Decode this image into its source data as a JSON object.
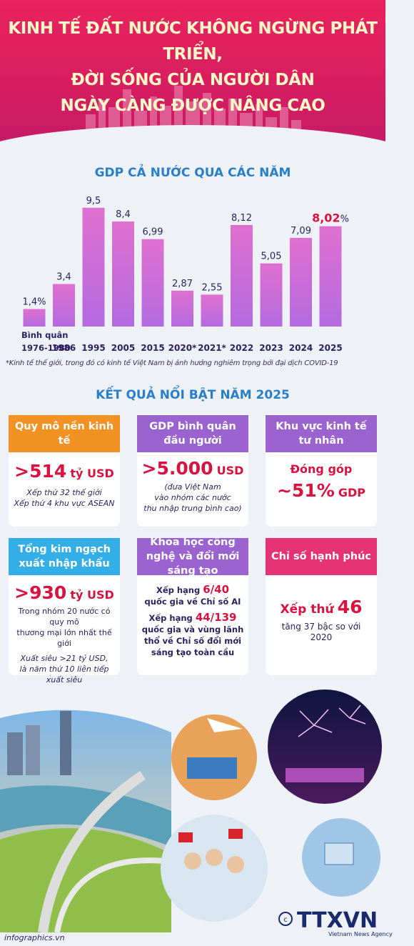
{
  "header": {
    "line1": "KINH TẾ ĐẤT NƯỚC KHÔNG NGỪNG PHÁT TRIỂN,",
    "line2": "ĐỜI SỐNG CỦA NGƯỜI DÂN",
    "line3": "NGÀY CÀNG ĐƯỢC NÂNG CAO"
  },
  "chart_data": {
    "type": "bar",
    "title": "GDP CẢ NƯỚC QUA CÁC NĂM",
    "categories": [
      "Bình quân 1976-1980",
      "1986",
      "1995",
      "2005",
      "2015",
      "2020*",
      "2021*",
      "2022",
      "2023",
      "2024",
      "2025"
    ],
    "category_lines": [
      [
        "Bình quân",
        "1976-1980"
      ],
      [
        "1986"
      ],
      [
        "1995"
      ],
      [
        "2005"
      ],
      [
        "2015"
      ],
      [
        "2020*"
      ],
      [
        "2021*"
      ],
      [
        "2022"
      ],
      [
        "2023"
      ],
      [
        "2024"
      ],
      [
        "2025"
      ]
    ],
    "values": [
      1.4,
      3.4,
      9.5,
      8.4,
      6.99,
      2.87,
      2.55,
      8.12,
      5.05,
      7.09,
      8.02
    ],
    "labels": [
      "1,4%",
      "3,4",
      "9,5",
      "8,4",
      "6,99",
      "2,87",
      "2,55",
      "8,12",
      "5,05",
      "7,09",
      "8,02"
    ],
    "highlight_index": 10,
    "highlight_suffix": "%",
    "ylim": [
      0,
      10
    ],
    "bar_color_top": "#e070d0",
    "bar_color_bottom": "#b36ae0",
    "highlight_label_color": "#d9123f",
    "footnote": "*Kinh tế thế giới, trong đó có kinh tế Việt Nam bị ảnh hưởng nghiêm trọng bởi đại dịch COVID-19"
  },
  "results": {
    "title": "KẾT QUẢ NỔI BẬT NĂM 2025",
    "cards": [
      {
        "caption": "Quy mô nền kinh tế",
        "big": ">514",
        "unit": "tỷ USD",
        "lines": [
          "Xếp thứ 32 thế giới",
          "Xếp thứ 4 khu vực ASEAN"
        ]
      },
      {
        "caption": "GDP bình quân đầu người",
        "big": ">5.000",
        "unit": "USD",
        "lines": [
          "(đưa Việt Nam",
          "vào nhóm các nước",
          "thu nhập trung bình cao)"
        ]
      },
      {
        "caption": "Khu vực kinh tế tư nhân",
        "pre": "Đóng góp",
        "big": "~51%",
        "unit": "GDP"
      },
      {
        "caption": "Tổng kim ngạch xuất nhập khẩu",
        "big": ">930",
        "unit": "tỷ USD",
        "lines": [
          "Trong nhóm 20 nước có quy mô",
          "thương mại lớn nhất thế giới"
        ],
        "lines2": [
          "Xuất siêu >21 tỷ USD,",
          "là năm thứ 10 liên tiếp xuất siêu"
        ]
      },
      {
        "caption": "Khoa học công nghệ và đổi mới sáng tạo",
        "rank1_pre": "Xếp hạng",
        "rank1": "6/40",
        "rank1_post": "quốc gia về Chỉ số AI",
        "rank2_pre": "Xếp hạng",
        "rank2": "44/139",
        "rank2_post": "quốc gia và vùng lãnh thổ về Chỉ số đổi mới sáng tạo toàn cầu"
      },
      {
        "caption": "Chỉ số hạnh phúc",
        "pre": "Xếp thứ",
        "big": "46",
        "sub": "tăng 37 bậc so với 2020"
      }
    ]
  },
  "footer": {
    "credit": "infographics.vn",
    "logo": "TTXVN",
    "logo_sub": "Vietnam News Agency"
  }
}
